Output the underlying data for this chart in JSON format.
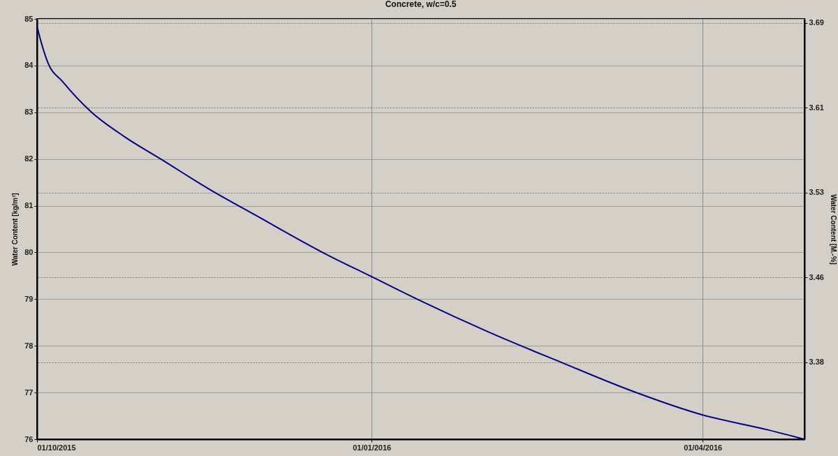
{
  "chart_data": {
    "type": "line",
    "title": "Concrete, w/c=0.5",
    "ylabel": "Water Content [kg/m³]",
    "y2label": "Water Content [M.-%]",
    "x": [
      "2015-10-01",
      "2015-10-02",
      "2015-10-04",
      "2015-10-08",
      "2015-10-16",
      "2015-10-25",
      "2015-11-04",
      "2015-11-17",
      "2015-11-30",
      "2015-12-19",
      "2016-01-01",
      "2016-01-14",
      "2016-02-02",
      "2016-02-22",
      "2016-03-12",
      "2016-04-01",
      "2016-04-19",
      "2016-04-29"
    ],
    "series": [
      {
        "color": "#000080",
        "values": [
          84.84,
          84.54,
          84.06,
          83.66,
          83.0,
          82.48,
          82.0,
          81.37,
          80.8,
          79.98,
          79.48,
          78.98,
          78.3,
          77.65,
          77.05,
          76.52,
          76.2,
          76.0
        ]
      }
    ],
    "xlim": [
      "2015-10-01",
      "2016-04-29"
    ],
    "xticks": [
      {
        "value": "2015-10-01",
        "label": "01/10/2015"
      },
      {
        "value": "2016-01-01",
        "label": "01/01/2016"
      },
      {
        "value": "2016-04-01",
        "label": "01/04/2016"
      }
    ],
    "ylim": [
      76,
      85
    ],
    "yticks": [
      76,
      77,
      78,
      79,
      80,
      81,
      82,
      83,
      84,
      85
    ],
    "y2lim": [
      3.3043,
      3.6957
    ],
    "y2ticks": [
      {
        "value": 3.376,
        "label": "3.38"
      },
      {
        "value": 3.455,
        "label": "3.46"
      },
      {
        "value": 3.534,
        "label": "3.53"
      },
      {
        "value": 3.613,
        "label": "3.61"
      },
      {
        "value": 3.692,
        "label": "3.69"
      }
    ],
    "grid": true,
    "line_style": "solid",
    "marker": "none"
  }
}
